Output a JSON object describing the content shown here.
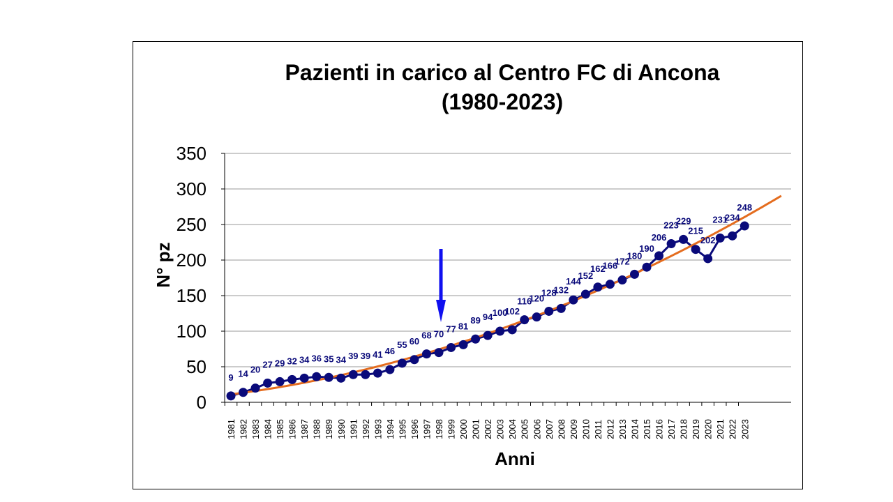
{
  "chart_data": {
    "type": "line",
    "title": "Pazienti in carico al Centro FC di Ancona",
    "subtitle": "(1980-2023)",
    "xlabel": "Anni",
    "ylabel": "N° pz",
    "ylim": [
      0,
      350
    ],
    "yticks": [
      0,
      50,
      100,
      150,
      200,
      250,
      300,
      350
    ],
    "grid": true,
    "categories": [
      "1981",
      "1982",
      "1983",
      "1984",
      "1985",
      "1986",
      "1987",
      "1988",
      "1989",
      "1990",
      "1991",
      "1992",
      "1993",
      "1994",
      "1995",
      "1996",
      "1997",
      "1998",
      "1999",
      "2000",
      "2001",
      "2002",
      "2003",
      "2004",
      "2005",
      "2006",
      "2007",
      "2008",
      "2009",
      "2010",
      "2011",
      "2012",
      "2013",
      "2014",
      "2015",
      "2016",
      "2017",
      "2018",
      "2019",
      "2020",
      "2021",
      "2022",
      "2023"
    ],
    "series": [
      {
        "values": [
          9,
          14,
          20,
          27,
          29,
          32,
          34,
          36,
          35,
          34,
          39,
          39,
          41,
          46,
          55,
          60,
          68,
          70,
          77,
          81,
          89,
          94,
          100,
          102,
          116,
          120,
          128,
          132,
          144,
          152,
          162,
          166,
          172,
          180,
          190,
          206,
          223,
          229,
          215,
          202,
          231,
          234,
          248
        ],
        "color": "#0A0A7A"
      }
    ],
    "trendline": {
      "type": "polynomial",
      "color": "#E46C1E",
      "x_start": 1981,
      "x_end": 2026,
      "values_approx": {
        "1981": 12,
        "1990": 38,
        "2000": 82,
        "2010": 152,
        "2020": 235,
        "2026": 288
      }
    },
    "annotation": {
      "type": "arrow",
      "color": "#1010F0",
      "at_category": "1998",
      "direction": "down"
    }
  }
}
